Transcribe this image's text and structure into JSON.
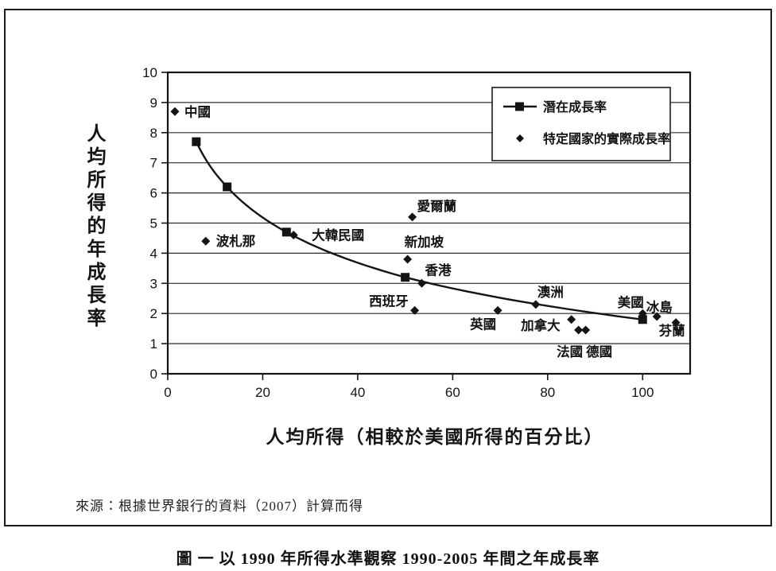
{
  "figure": {
    "caption": "圖 一  以 1990 年所得水準觀察 1990-2005 年間之年成長率",
    "source_note": "來源：根據世界銀行的資料（2007）計算而得"
  },
  "chart_data": {
    "type": "scatter",
    "title": "",
    "xlabel": "人均所得（相較於美國所得的百分比）",
    "ylabel": "人均所得的年成長率",
    "xlim": [
      0,
      110
    ],
    "ylim": [
      0,
      10
    ],
    "xticks": [
      0,
      20,
      40,
      60,
      80,
      100
    ],
    "yticks": [
      0,
      1,
      2,
      3,
      4,
      5,
      6,
      7,
      8,
      9,
      10
    ],
    "grid": "horizontal",
    "legend": {
      "position": "top-right",
      "entries": [
        "潛在成長率",
        "特定國家的實際成長率"
      ]
    },
    "series": [
      {
        "name": "潛在成長率",
        "marker": "square",
        "line": true,
        "points": [
          {
            "x": 6,
            "y": 7.7
          },
          {
            "x": 12.5,
            "y": 6.2
          },
          {
            "x": 25,
            "y": 4.7
          },
          {
            "x": 50,
            "y": 3.2
          },
          {
            "x": 100,
            "y": 1.8
          }
        ]
      },
      {
        "name": "特定國家的實際成長率",
        "marker": "diamond",
        "line": false,
        "points": [
          {
            "id": "china",
            "label": "中國",
            "x": 1.5,
            "y": 8.7,
            "anchor": "start",
            "dx": 12,
            "dy": 6
          },
          {
            "id": "botswana",
            "label": "波札那",
            "x": 8,
            "y": 4.4,
            "anchor": "start",
            "dx": 13,
            "dy": 6
          },
          {
            "id": "south-korea",
            "label": "大韓民國",
            "x": 26.5,
            "y": 4.6,
            "anchor": "start",
            "dx": 23,
            "dy": 6
          },
          {
            "id": "ireland",
            "label": "愛爾蘭",
            "x": 51.5,
            "y": 5.2,
            "anchor": "start",
            "dx": 6,
            "dy": -8
          },
          {
            "id": "singapore",
            "label": "新加坡",
            "x": 50.5,
            "y": 3.8,
            "anchor": "start",
            "dx": -4,
            "dy": -16
          },
          {
            "id": "hong-kong",
            "label": "香港",
            "x": 53.5,
            "y": 3.0,
            "anchor": "start",
            "dx": 4,
            "dy": -11
          },
          {
            "id": "spain",
            "label": "西班牙",
            "x": 52,
            "y": 2.1,
            "anchor": "end",
            "dx": -8,
            "dy": -6
          },
          {
            "id": "uk",
            "label": "英國",
            "x": 69.5,
            "y": 2.1,
            "anchor": "end",
            "dx": -2,
            "dy": 23
          },
          {
            "id": "australia",
            "label": "澳洲",
            "x": 77.5,
            "y": 2.3,
            "anchor": "start",
            "dx": 2,
            "dy": -10
          },
          {
            "id": "canada",
            "label": "加拿大",
            "x": 85,
            "y": 1.8,
            "anchor": "end",
            "dx": -14,
            "dy": 13
          },
          {
            "id": "france",
            "label": "法國",
            "x": 86.5,
            "y": 1.45,
            "anchor": "middle",
            "dx": -11,
            "dy": 33
          },
          {
            "id": "germany",
            "label": "德國",
            "x": 88,
            "y": 1.45,
            "anchor": "middle",
            "dx": 17,
            "dy": 33
          },
          {
            "id": "usa",
            "label": "美國",
            "x": 100,
            "y": 2.0,
            "anchor": "middle",
            "dx": -15,
            "dy": -8
          },
          {
            "id": "iceland",
            "label": "冰島",
            "x": 103,
            "y": 1.9,
            "anchor": "middle",
            "dx": 3,
            "dy": -6
          },
          {
            "id": "finland",
            "label": "芬蘭",
            "x": 107,
            "y": 1.7,
            "anchor": "middle",
            "dx": -5,
            "dy": 16
          }
        ]
      }
    ]
  }
}
